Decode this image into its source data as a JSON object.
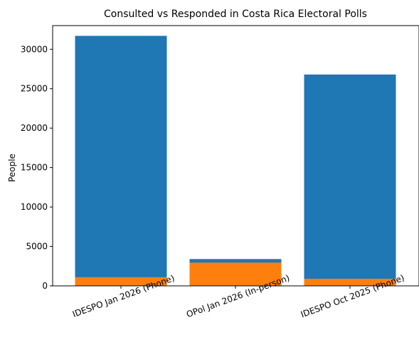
{
  "chart_data": {
    "type": "bar",
    "stacked": "overlaid",
    "title": "Consulted vs Responded in Costa Rica Electoral Polls",
    "xlabel": "",
    "ylabel": "People",
    "categories": [
      "IDESPO Jan 2026 (Phone)",
      "OPol Jan 2026 (In-person)",
      "IDESPO Oct 2025 (Phone)"
    ],
    "series": [
      {
        "values": [
          31700,
          3400,
          26800
        ],
        "color": "#1f77b4"
      },
      {
        "values": [
          1100,
          2950,
          900
        ],
        "color": "#ff7f0e"
      }
    ],
    "ylim": [
      0,
      33000
    ],
    "yticks": [
      0,
      5000,
      10000,
      15000,
      20000,
      25000,
      30000
    ],
    "grid": false,
    "legend": "none"
  }
}
